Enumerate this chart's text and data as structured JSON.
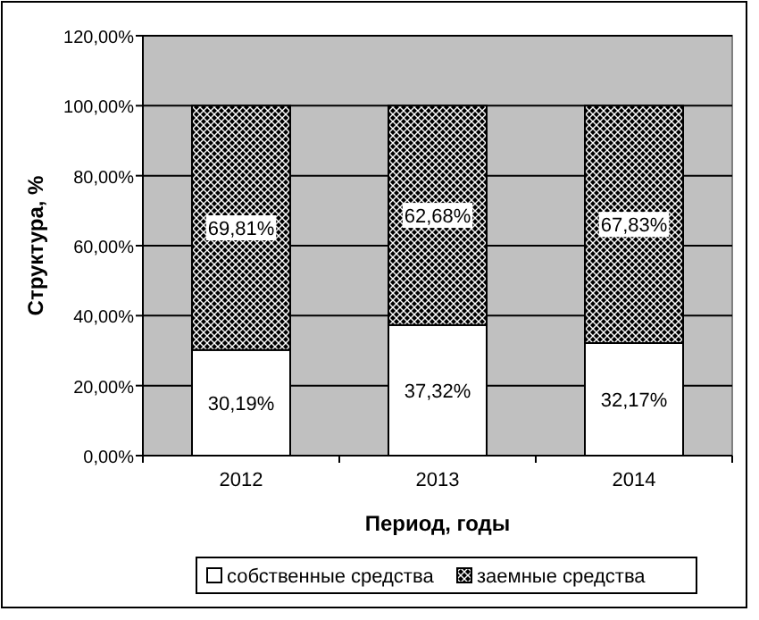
{
  "chart_data": {
    "type": "bar",
    "stacked": true,
    "xlabel": "Период, годы",
    "ylabel": "Структура, %",
    "categories": [
      "2012",
      "2013",
      "2014"
    ],
    "series": [
      {
        "name": "собственные средства",
        "color": "#ffffff",
        "values": [
          30.19,
          37.32,
          32.17
        ],
        "value_labels": [
          "30,19%",
          "37,32%",
          "32,17%"
        ]
      },
      {
        "name": "заемные средства",
        "color": "#000000",
        "values": [
          69.81,
          62.68,
          67.83
        ],
        "value_labels": [
          "69,81%",
          "62,68%",
          "67,83%"
        ]
      }
    ],
    "ylim": [
      0,
      120
    ],
    "yticks": [
      {
        "value": 0,
        "label": "0,00%"
      },
      {
        "value": 20,
        "label": "20,00%"
      },
      {
        "value": 40,
        "label": "40,00%"
      },
      {
        "value": 60,
        "label": "60,00%"
      },
      {
        "value": 80,
        "label": "80,00%"
      },
      {
        "value": 100,
        "label": "100,00%"
      },
      {
        "value": 120,
        "label": "120,00%"
      }
    ],
    "grid": "y",
    "legend": "bottom"
  }
}
